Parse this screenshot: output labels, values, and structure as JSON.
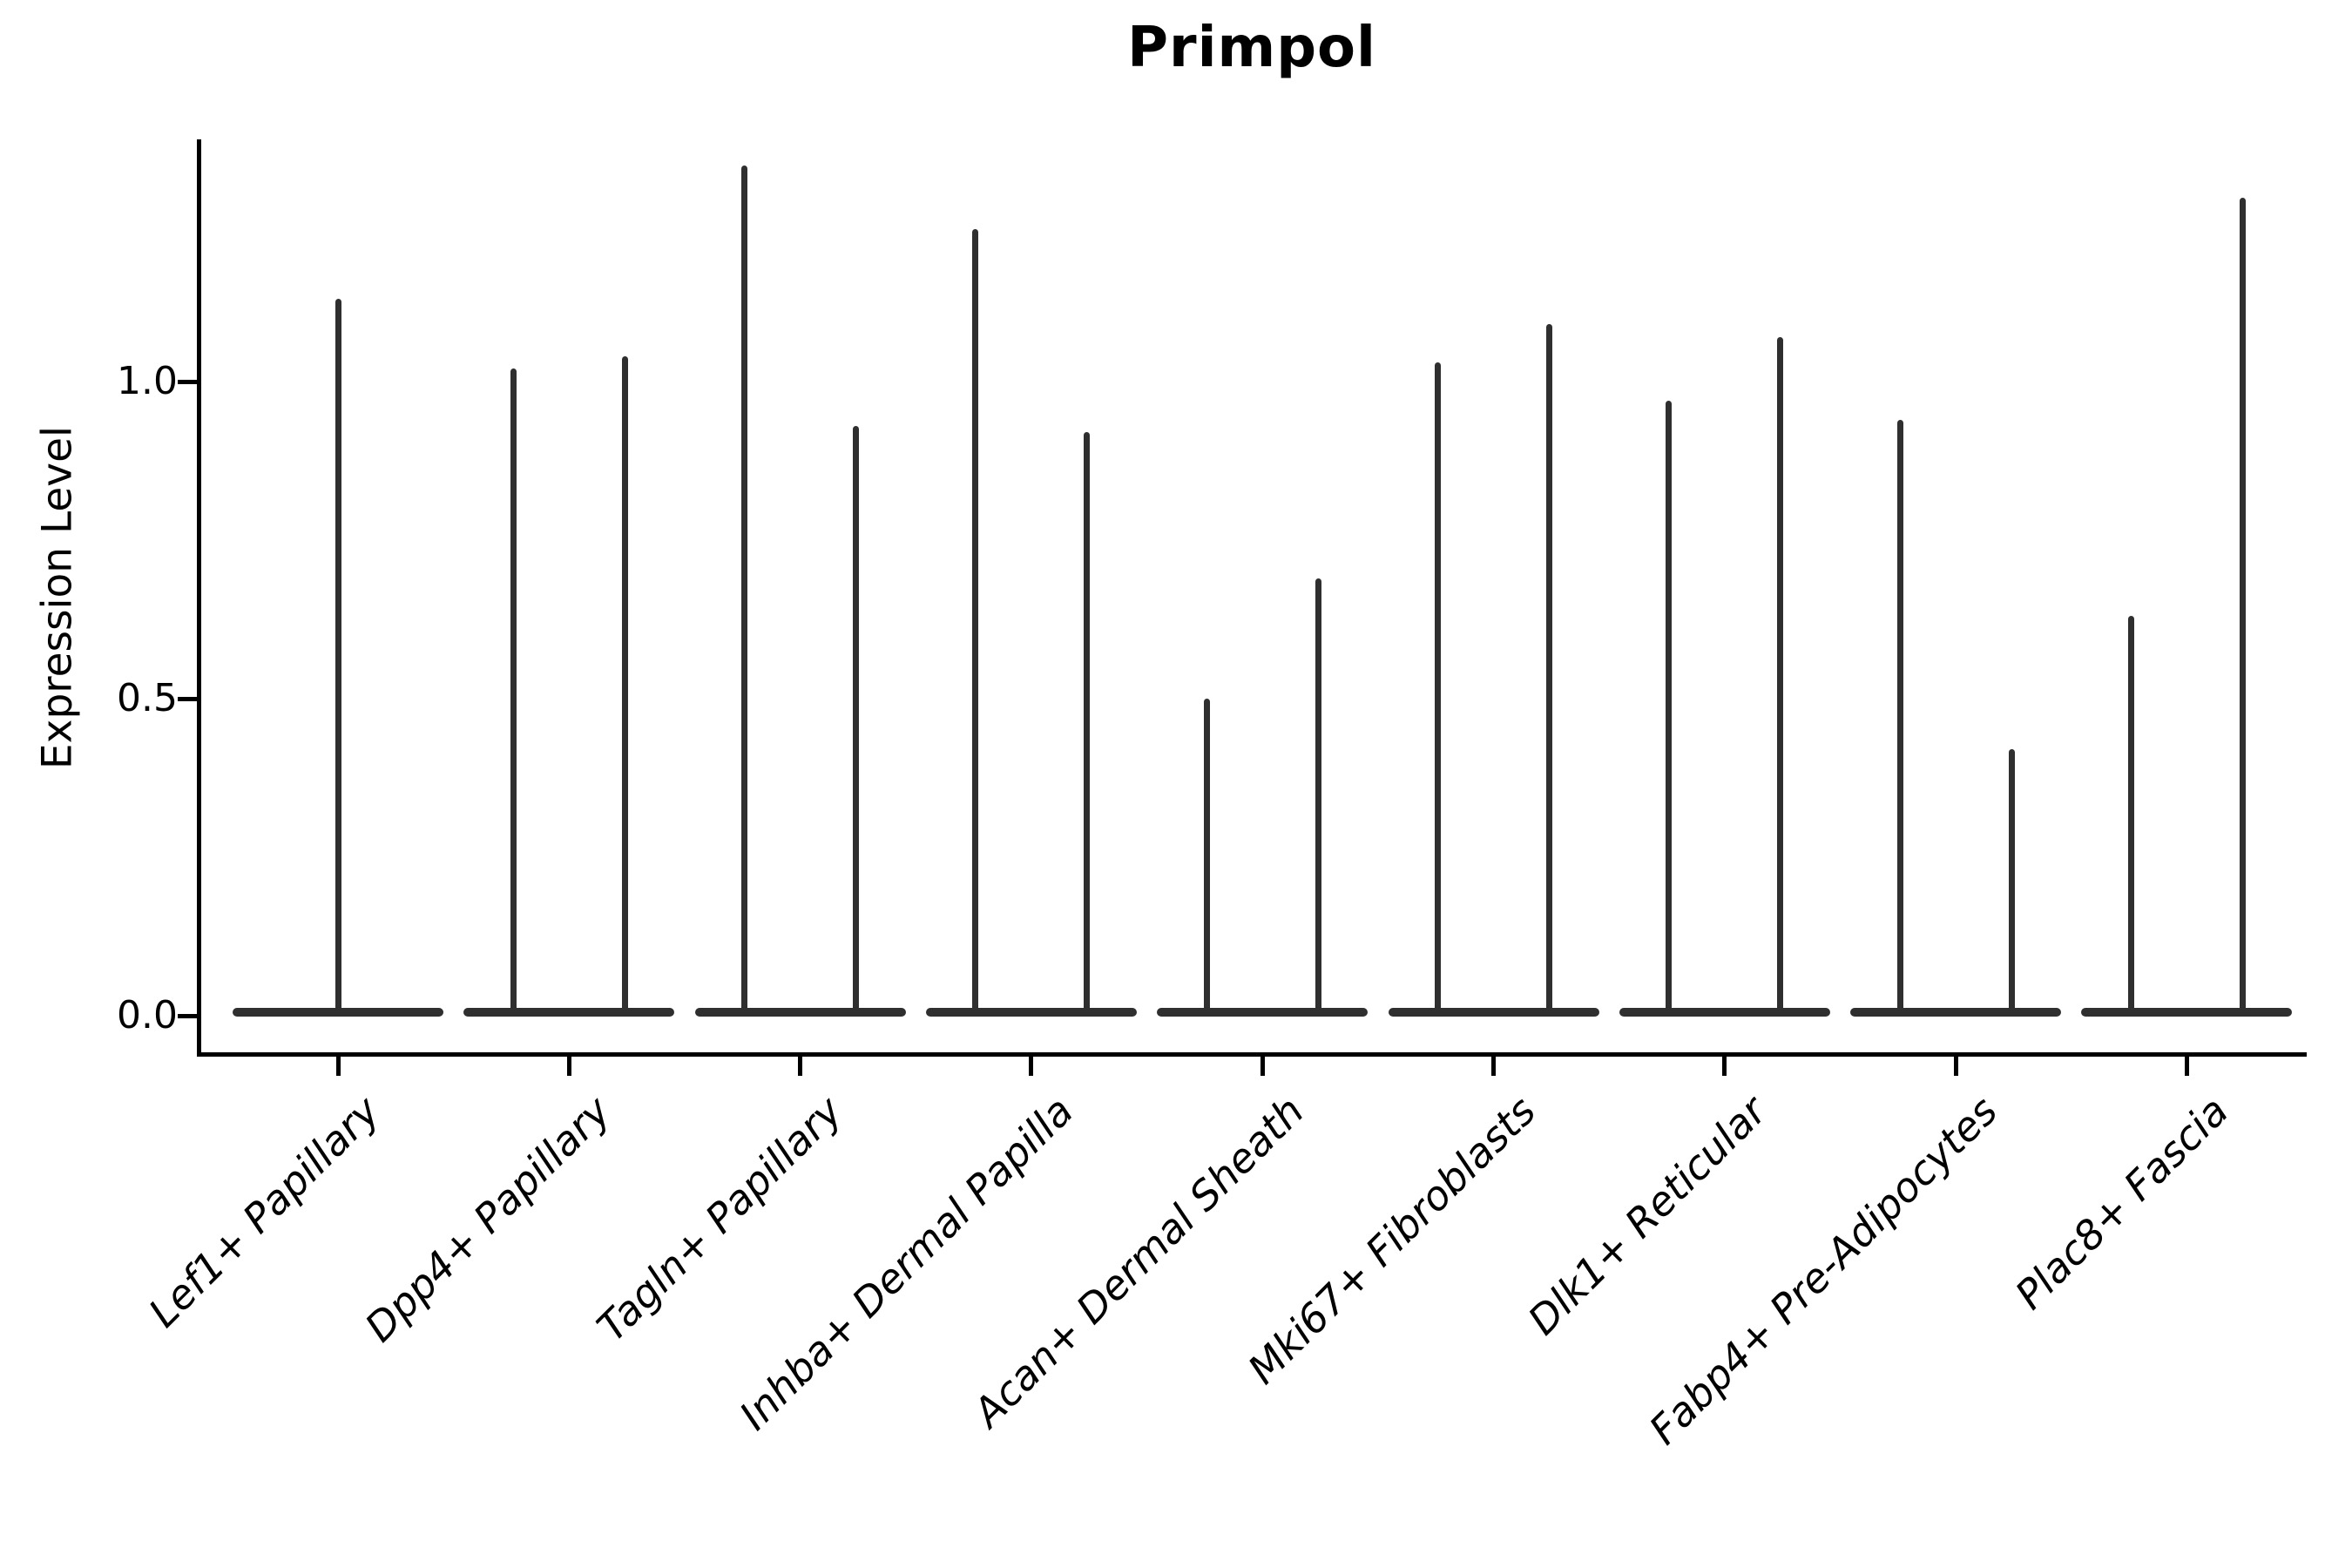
{
  "title": "Primpol",
  "y_axis": {
    "label": "Expression Level",
    "tick_labels": [
      "0.0",
      "0.5",
      "1.0"
    ],
    "tick_values": [
      0.0,
      0.5,
      1.0
    ]
  },
  "chart_data": {
    "type": "violin",
    "title": "Primpol",
    "xlabel": "",
    "ylabel": "Expression Level",
    "ylim": [
      0.0,
      1.38
    ],
    "yticks": [
      0.0,
      0.5,
      1.0
    ],
    "grid": false,
    "legend": "none",
    "violin_color": "#2f2f2f",
    "background": "#ffffff",
    "note": "Each group shows very thin violin(s): a wide flat base at expression 0 plus hair-thin tails reaching the listed maximum expression values. All groups have two violins per category except the first, which has a single centered violin.",
    "categories": [
      "Lef1+ Papillary",
      "Dpp4+ Papillary",
      "Tagln+ Papillary",
      "Inhba+ Dermal Papilla",
      "Acan+ Dermal Sheath",
      "Mki67+ Fibroblasts",
      "Dlk1+ Reticular",
      "Fabp4+ Pre-Adipocytes",
      "Plac8+ Fascia"
    ],
    "violins": [
      {
        "category": "Lef1+ Papillary",
        "baseline_value": 0.0,
        "max_values": [
          1.13
        ]
      },
      {
        "category": "Dpp4+ Papillary",
        "baseline_value": 0.0,
        "max_values": [
          1.02,
          1.04
        ]
      },
      {
        "category": "Tagln+ Papillary",
        "baseline_value": 0.0,
        "max_values": [
          1.34,
          0.93
        ]
      },
      {
        "category": "Inhba+ Dermal Papilla",
        "baseline_value": 0.0,
        "max_values": [
          1.24,
          0.92
        ]
      },
      {
        "category": "Acan+ Dermal Sheath",
        "baseline_value": 0.0,
        "max_values": [
          0.5,
          0.69
        ]
      },
      {
        "category": "Mki67+ Fibroblasts",
        "baseline_value": 0.0,
        "max_values": [
          1.03,
          1.09
        ]
      },
      {
        "category": "Dlk1+ Reticular",
        "baseline_value": 0.0,
        "max_values": [
          0.97,
          1.07
        ]
      },
      {
        "category": "Fabp4+ Pre-Adipocytes",
        "baseline_value": 0.0,
        "max_values": [
          0.94,
          0.42
        ]
      },
      {
        "category": "Plac8+ Fascia",
        "baseline_value": 0.0,
        "max_values": [
          0.63,
          1.29
        ]
      }
    ]
  }
}
